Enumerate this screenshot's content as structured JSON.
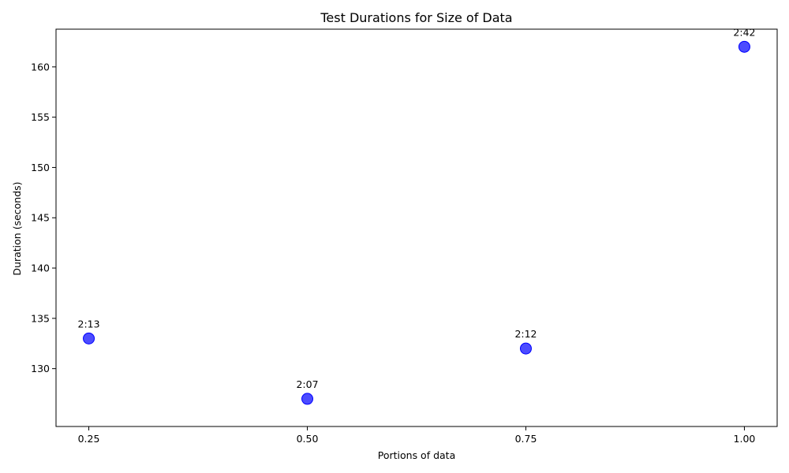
{
  "chart_data": {
    "type": "scatter",
    "title": "Test Durations for Size of Data",
    "xlabel": "Portions of data",
    "ylabel": "Duration (seconds)",
    "x": [
      0.25,
      0.5,
      0.75,
      1.0
    ],
    "y": [
      133,
      127,
      132,
      162
    ],
    "point_labels": [
      "2:13",
      "2:07",
      "2:12",
      "2:42"
    ],
    "xticks": [
      0.25,
      0.5,
      0.75,
      1.0
    ],
    "xtick_labels": [
      "0.25",
      "0.50",
      "0.75",
      "1.00"
    ],
    "yticks": [
      130,
      135,
      140,
      145,
      150,
      155,
      160
    ],
    "ytick_labels": [
      "130",
      "135",
      "140",
      "145",
      "150",
      "155",
      "160"
    ],
    "xlim": [
      0.2125,
      1.0375
    ],
    "ylim": [
      124.25,
      163.75
    ],
    "grid": false,
    "marker_color": "#0000ff"
  }
}
